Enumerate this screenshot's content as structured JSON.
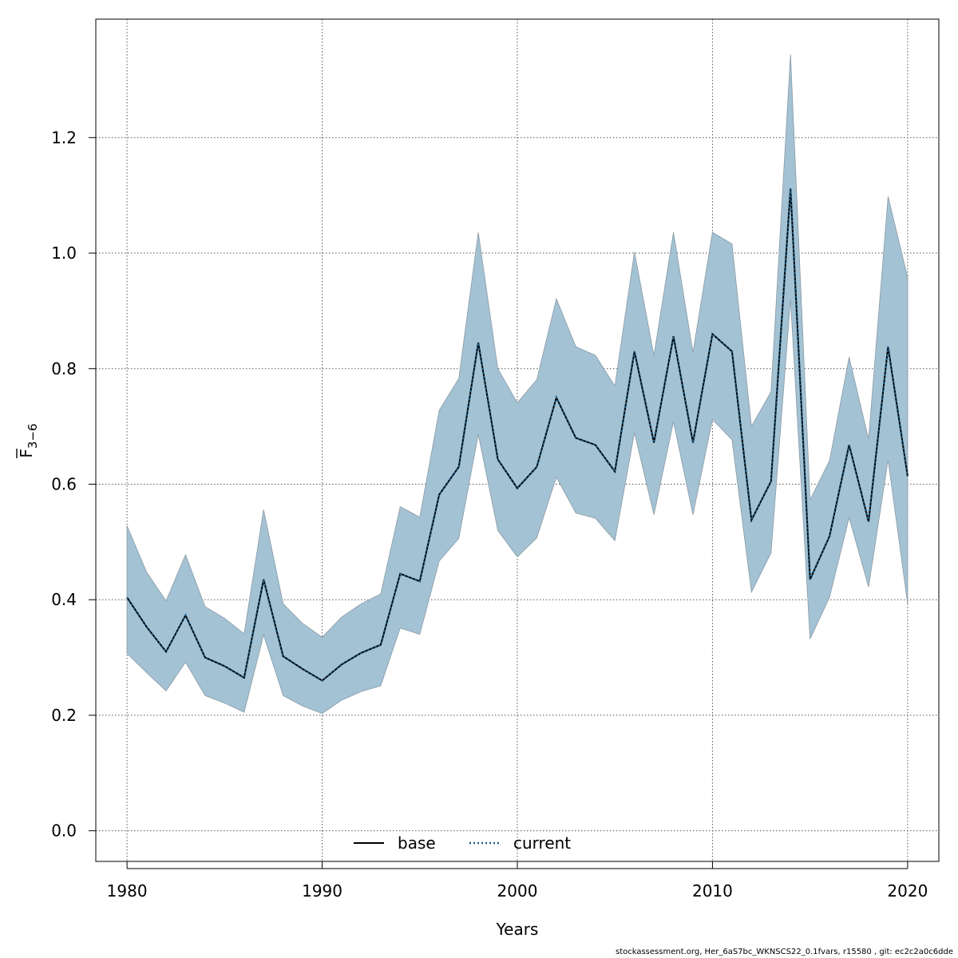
{
  "chart_data": {
    "type": "line",
    "xlabel": "Years",
    "ylabel_main": "F",
    "ylabel_sub": "3−6",
    "xlim": [
      1978.4,
      2021.6
    ],
    "ylim": [
      -0.053,
      1.405
    ],
    "x_ticks": [
      1980,
      1990,
      2000,
      2010,
      2020
    ],
    "x_tick_labels": [
      "1980",
      "1990",
      "2000",
      "2010",
      "2020"
    ],
    "y_ticks": [
      0.0,
      0.2,
      0.4,
      0.6,
      0.8,
      1.0,
      1.2
    ],
    "y_tick_labels": [
      "0.0",
      "0.2",
      "0.4",
      "0.6",
      "0.8",
      "1.0",
      "1.2"
    ],
    "grid": true,
    "legend_position": "bottom-center",
    "legend": [
      {
        "label": "base",
        "style": "solid",
        "color": "#000000"
      },
      {
        "label": "current",
        "style": "dotted",
        "color": "#1f5f8b"
      }
    ],
    "band_color": "#a3c2d4",
    "x": [
      1980,
      1981,
      1982,
      1983,
      1984,
      1985,
      1986,
      1987,
      1988,
      1989,
      1990,
      1991,
      1992,
      1993,
      1994,
      1995,
      1996,
      1997,
      1998,
      1999,
      2000,
      2001,
      2002,
      2003,
      2004,
      2005,
      2006,
      2007,
      2008,
      2009,
      2010,
      2011,
      2012,
      2013,
      2014,
      2015,
      2016,
      2017,
      2018,
      2019,
      2020
    ],
    "series": [
      {
        "name": "base",
        "values": [
          0.404,
          0.353,
          0.31,
          0.373,
          0.3,
          0.285,
          0.265,
          0.435,
          0.302,
          0.28,
          0.26,
          0.288,
          0.308,
          0.322,
          0.445,
          0.432,
          0.582,
          0.63,
          0.845,
          0.643,
          0.593,
          0.63,
          0.75,
          0.68,
          0.668,
          0.622,
          0.83,
          0.672,
          0.856,
          0.672,
          0.86,
          0.83,
          0.538,
          0.605,
          1.112,
          0.435,
          0.51,
          0.668,
          0.535,
          0.838,
          0.614
        ]
      },
      {
        "name": "current",
        "values": [
          0.404,
          0.353,
          0.31,
          0.373,
          0.3,
          0.285,
          0.265,
          0.435,
          0.302,
          0.28,
          0.26,
          0.288,
          0.308,
          0.322,
          0.445,
          0.432,
          0.582,
          0.63,
          0.845,
          0.643,
          0.593,
          0.63,
          0.75,
          0.68,
          0.668,
          0.622,
          0.83,
          0.672,
          0.856,
          0.672,
          0.86,
          0.83,
          0.538,
          0.605,
          1.112,
          0.435,
          0.51,
          0.668,
          0.535,
          0.838,
          0.614
        ]
      }
    ],
    "ci_lower": [
      0.307,
      0.274,
      0.242,
      0.292,
      0.234,
      0.221,
      0.205,
      0.339,
      0.234,
      0.216,
      0.203,
      0.226,
      0.241,
      0.251,
      0.351,
      0.34,
      0.467,
      0.506,
      0.686,
      0.52,
      0.474,
      0.507,
      0.612,
      0.55,
      0.541,
      0.502,
      0.689,
      0.547,
      0.708,
      0.547,
      0.712,
      0.677,
      0.413,
      0.481,
      0.92,
      0.332,
      0.404,
      0.542,
      0.422,
      0.642,
      0.393
    ],
    "ci_upper": [
      0.528,
      0.448,
      0.398,
      0.478,
      0.388,
      0.368,
      0.341,
      0.556,
      0.393,
      0.359,
      0.335,
      0.37,
      0.393,
      0.41,
      0.561,
      0.543,
      0.728,
      0.783,
      1.036,
      0.8,
      0.741,
      0.781,
      0.921,
      0.838,
      0.823,
      0.77,
      1.002,
      0.823,
      1.036,
      0.828,
      1.036,
      1.016,
      0.7,
      0.76,
      1.344,
      0.573,
      0.641,
      0.82,
      0.678,
      1.098,
      0.958
    ]
  },
  "footer_text": "stockassessment.org, Her_6aS7bc_WKNSCS22_0.1fvars, r15580 , git: ec2c2a0c6dde"
}
